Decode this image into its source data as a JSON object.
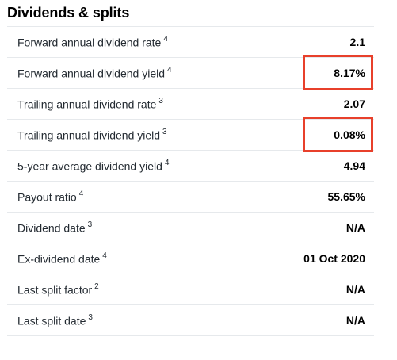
{
  "section": {
    "title": "Dividends & splits"
  },
  "rows": [
    {
      "label": "Forward annual dividend rate",
      "note": "4",
      "value": "2.1"
    },
    {
      "label": "Forward annual dividend yield",
      "note": "4",
      "value": "8.17%"
    },
    {
      "label": "Trailing annual dividend rate",
      "note": "3",
      "value": "2.07"
    },
    {
      "label": "Trailing annual dividend yield",
      "note": "3",
      "value": "0.08%"
    },
    {
      "label": "5-year average dividend yield",
      "note": "4",
      "value": "4.94"
    },
    {
      "label": "Payout ratio",
      "note": "4",
      "value": "55.65%"
    },
    {
      "label": "Dividend date",
      "note": "3",
      "value": "N/A"
    },
    {
      "label": "Ex-dividend date",
      "note": "4",
      "value": "01 Oct 2020"
    },
    {
      "label": "Last split factor",
      "note": "2",
      "value": "N/A"
    },
    {
      "label": "Last split date",
      "note": "3",
      "value": "N/A"
    }
  ],
  "colors": {
    "highlight": "#e8402b",
    "divider": "#e6e9ec"
  }
}
